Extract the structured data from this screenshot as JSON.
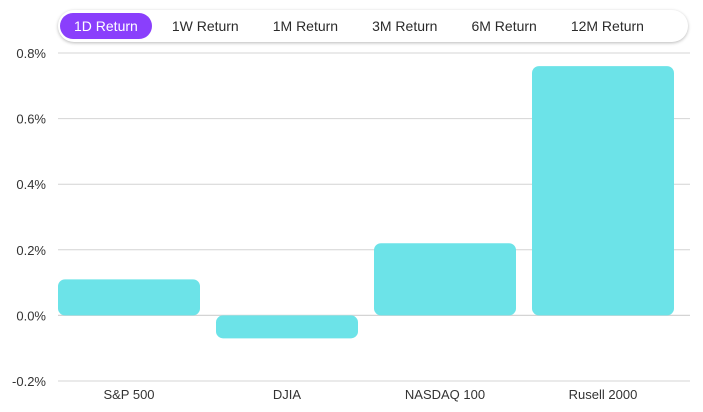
{
  "tabs": [
    {
      "label": "1D Return",
      "active": true
    },
    {
      "label": "1W Return",
      "active": false
    },
    {
      "label": "1M Return",
      "active": false
    },
    {
      "label": "3M Return",
      "active": false
    },
    {
      "label": "6M Return",
      "active": false
    },
    {
      "label": "12M Return",
      "active": false
    }
  ],
  "colors": {
    "bar": "#6ce3e8",
    "accent": "#8a3ffc",
    "grid": "#d4d4d4"
  },
  "chart_data": {
    "type": "bar",
    "categories": [
      "S&P 500",
      "DJIA",
      "NASDAQ 100",
      "Rusell 2000"
    ],
    "values": [
      0.11,
      -0.07,
      0.22,
      0.76
    ],
    "ylim": [
      -0.2,
      0.8
    ],
    "yticks": [
      "0.8%",
      "0.6%",
      "0.4%",
      "0.2%",
      "0.0%",
      "-0.2%"
    ],
    "ytick_values": [
      0.8,
      0.6,
      0.4,
      0.2,
      0.0,
      -0.2
    ],
    "grid": true
  }
}
